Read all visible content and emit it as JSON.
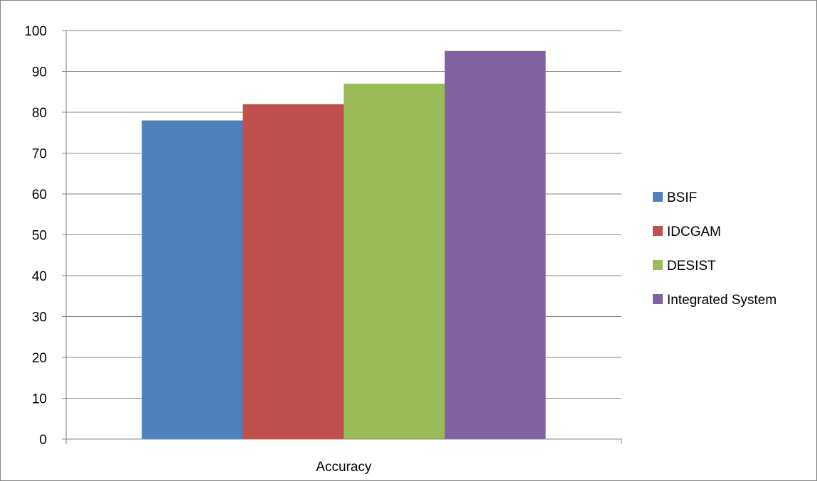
{
  "chart_data": {
    "type": "bar",
    "categories": [
      "Accuracy"
    ],
    "series": [
      {
        "name": "BSIF",
        "values": [
          78
        ],
        "color": "#4F81BD"
      },
      {
        "name": "IDCGAM",
        "values": [
          82
        ],
        "color": "#C0504D"
      },
      {
        "name": "DESIST",
        "values": [
          87
        ],
        "color": "#9BBB59"
      },
      {
        "name": "Integrated System",
        "values": [
          95
        ],
        "color": "#8064A2"
      }
    ],
    "title": "",
    "xlabel": "",
    "ylabel": "",
    "ylim": [
      0,
      100
    ],
    "yticks": [
      0,
      10,
      20,
      30,
      40,
      50,
      60,
      70,
      80,
      90,
      100
    ],
    "grid": true,
    "legend_position": "right"
  }
}
